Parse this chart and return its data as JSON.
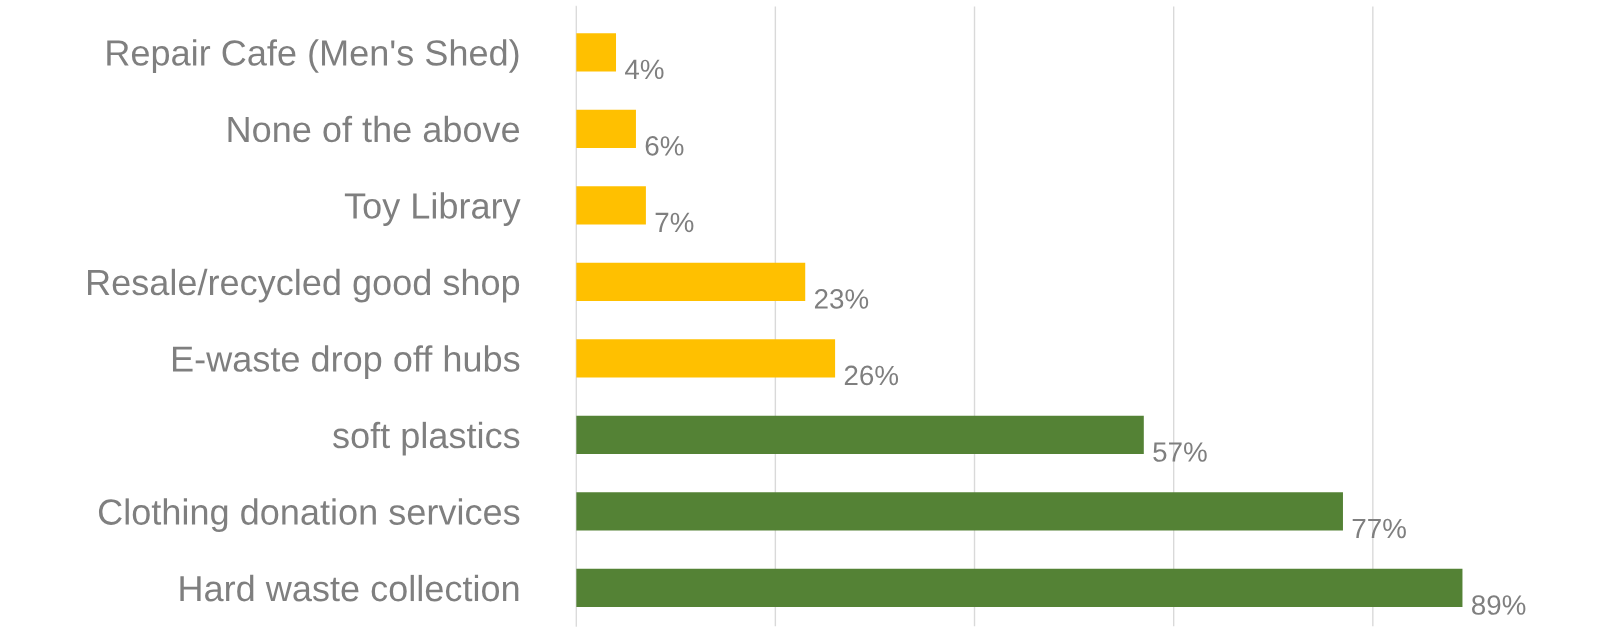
{
  "chart_data": {
    "type": "bar",
    "orientation": "horizontal",
    "categories": [
      "Repair Cafe (Men's Shed)",
      "None of the above",
      "Toy Library",
      "Resale/recycled good shop",
      "E-waste drop off hubs",
      "soft plastics",
      "Clothing donation services",
      "Hard waste collection"
    ],
    "values": [
      4,
      6,
      7,
      23,
      26,
      57,
      77,
      89
    ],
    "colors": [
      "#ffc000",
      "#ffc000",
      "#ffc000",
      "#ffc000",
      "#ffc000",
      "#548235",
      "#548235",
      "#548235"
    ],
    "value_labels": [
      "4%",
      "6%",
      "7%",
      "23%",
      "26%",
      "57%",
      "77%",
      "89%"
    ],
    "xticks": [
      {
        "value": 0,
        "label": null
      },
      {
        "value": 20,
        "label": null
      },
      {
        "value": 40,
        "label": null
      },
      {
        "value": 60,
        "label": null
      },
      {
        "value": 80,
        "label": null
      }
    ],
    "tick_labels": "y",
    "grid": "x",
    "legend": false
  }
}
